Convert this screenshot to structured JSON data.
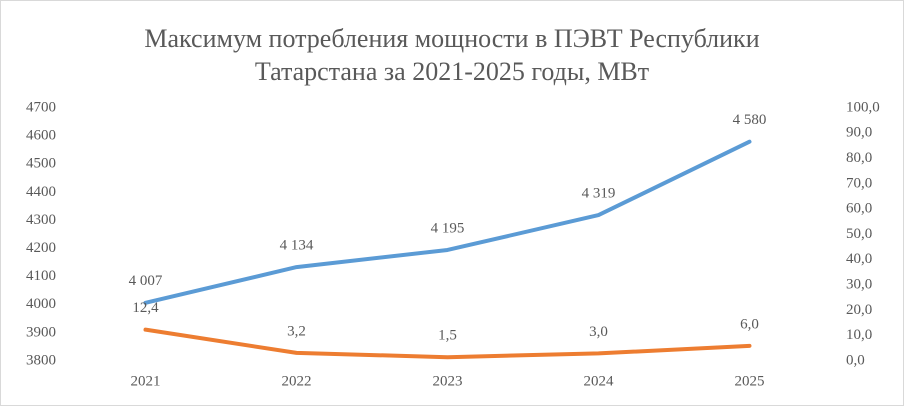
{
  "chart_data": {
    "type": "line",
    "title": [
      "Максимум потребления мощности в ПЭВТ Республики",
      "Татарстана за 2021-2025 годы, МВт"
    ],
    "categories": [
      "2021",
      "2022",
      "2023",
      "2024",
      "2025"
    ],
    "series": [
      {
        "color": "#5b9bd5",
        "values": [
          4007,
          4134,
          4195,
          4319,
          4580
        ],
        "value_labels": [
          "4 007",
          "4 134",
          "4 195",
          "4 319",
          "4 580"
        ]
      },
      {
        "color": "#ed7d31",
        "axis": "y2",
        "values": [
          12.4,
          3.2,
          1.5,
          3.0,
          6.0
        ],
        "value_labels": [
          "12,4",
          "3,2",
          "1,5",
          "3,0",
          "6,0"
        ]
      }
    ],
    "ylim": [
      3800,
      4700
    ],
    "yticks": [
      3800,
      3900,
      4000,
      4100,
      4200,
      4300,
      4400,
      4500,
      4600,
      4700
    ],
    "y2lim": [
      0,
      100
    ],
    "y2ticks": [
      {
        "value": 0,
        "label": "0,0"
      },
      {
        "value": 10,
        "label": "10,0"
      },
      {
        "value": 20,
        "label": "20,0"
      },
      {
        "value": 30,
        "label": "30,0"
      },
      {
        "value": 40,
        "label": "40,0"
      },
      {
        "value": 50,
        "label": "50,0"
      },
      {
        "value": 60,
        "label": "60,0"
      },
      {
        "value": 70,
        "label": "70,0"
      },
      {
        "value": 80,
        "label": "80,0"
      },
      {
        "value": 90,
        "label": "90,0"
      },
      {
        "value": 100,
        "label": "100,0"
      }
    ],
    "grid": false
  }
}
